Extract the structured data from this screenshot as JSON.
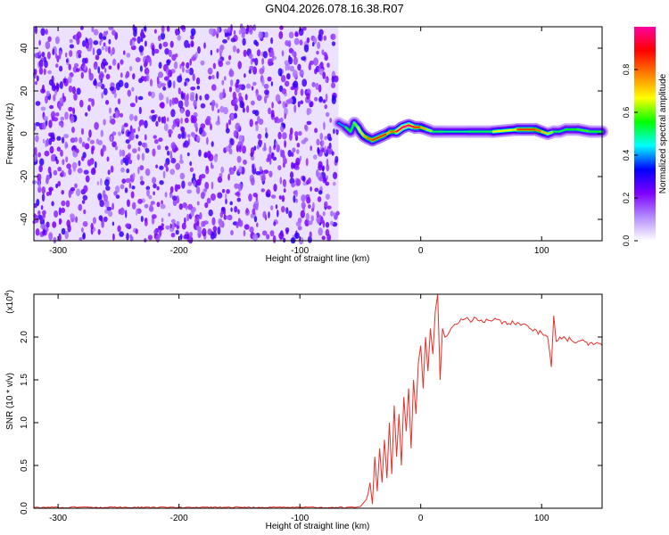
{
  "figure": {
    "title": "GN04.2026.078.16.38.R07"
  },
  "colorbar": {
    "label": "Normalized spectral amplitude",
    "ticks": [
      0.0,
      0.2,
      0.4,
      0.6,
      0.8
    ],
    "tick_labels": [
      "0.0",
      "0.2",
      "0.4",
      "0.6",
      "0.8"
    ],
    "range": [
      0,
      1
    ],
    "colors": [
      "#ffffff",
      "#b48cff",
      "#7f00ff",
      "#0000ff",
      "#00ffff",
      "#00ff00",
      "#ffff00",
      "#ff8000",
      "#ff0000",
      "#ff00a0"
    ]
  },
  "chart_data": [
    {
      "type": "heatmap",
      "title": "",
      "xlabel": "Height of straight line (km)",
      "ylabel": "Frequency (Hz)",
      "xlim": [
        -320,
        150
      ],
      "ylim": [
        -50,
        50
      ],
      "xticks": [
        -300,
        -200,
        -100,
        0,
        100
      ],
      "xtick_labels": [
        "-300",
        "-200",
        "-100",
        "0",
        "100"
      ],
      "yticks": [
        -40,
        -20,
        0,
        20,
        40
      ],
      "ytick_labels": [
        "-40",
        "-20",
        "0",
        "20",
        "40"
      ],
      "noise_region_x": [
        -320,
        -68
      ],
      "signal_ridge": {
        "x": [
          -68,
          -62,
          -58,
          -55,
          -52,
          -50,
          -47,
          -44,
          -40,
          -36,
          -32,
          -28,
          -25,
          -20,
          -15,
          -10,
          -5,
          0,
          5,
          10,
          20,
          40,
          60,
          80,
          95,
          100,
          105,
          110,
          115,
          120,
          130,
          140,
          150
        ],
        "y": [
          5,
          3,
          1,
          5,
          3,
          1,
          -1,
          -2,
          -3,
          -2,
          -1,
          0,
          1,
          1,
          3,
          4,
          3,
          3,
          2,
          1,
          1,
          1,
          1,
          2,
          2,
          1,
          0,
          1,
          1,
          2,
          2,
          1,
          1
        ],
        "peak_amplitude": [
          0.3,
          0.5,
          0.6,
          0.5,
          0.7,
          0.6,
          0.8,
          0.7,
          0.9,
          0.8,
          0.9,
          0.8,
          0.7,
          0.9,
          1.0,
          1.0,
          0.9,
          0.8,
          0.7,
          0.55,
          0.5,
          0.5,
          0.55,
          0.8,
          0.9,
          0.7,
          0.75,
          0.5,
          0.55,
          0.5,
          0.6,
          0.55,
          0.55
        ]
      }
    },
    {
      "type": "line",
      "title": "",
      "xlabel": "Height of straight line (km)",
      "ylabel": "SNR (10 * v/v)",
      "y_multiplier_label": "(x10",
      "y_multiplier_exp": "4",
      "y_multiplier_close": ")",
      "xlim": [
        -320,
        150
      ],
      "ylim": [
        0,
        2.5
      ],
      "xticks": [
        -300,
        -200,
        -100,
        0,
        100
      ],
      "xtick_labels": [
        "-300",
        "-200",
        "-100",
        "0",
        "100"
      ],
      "yticks": [
        0.0,
        0.5,
        1.0,
        1.5,
        2.0
      ],
      "ytick_labels": [
        "0.0",
        "0.5",
        "1.0",
        "1.5",
        "2.0"
      ],
      "grid": false,
      "series": [
        {
          "color": "#e8302a",
          "x": [
            -320,
            -250,
            -200,
            -150,
            -100,
            -70,
            -55,
            -50,
            -45,
            -42,
            -40,
            -38,
            -36,
            -34,
            -32,
            -30,
            -28,
            -26,
            -24,
            -22,
            -20,
            -18,
            -16,
            -14,
            -12,
            -10,
            -8,
            -6,
            -4,
            -2,
            0,
            2,
            4,
            6,
            8,
            10,
            12,
            14,
            16,
            18,
            20,
            25,
            30,
            35,
            40,
            50,
            60,
            70,
            80,
            90,
            100,
            105,
            108,
            110,
            112,
            115,
            120,
            130,
            140,
            150
          ],
          "y": [
            0.01,
            0.01,
            0.01,
            0.01,
            0.01,
            0.01,
            0.01,
            0.02,
            0.1,
            0.3,
            0.05,
            0.6,
            0.2,
            0.7,
            0.3,
            0.8,
            0.35,
            1.0,
            0.4,
            1.2,
            0.6,
            1.1,
            0.5,
            1.3,
            0.9,
            1.4,
            0.7,
            1.5,
            1.1,
            1.7,
            1.9,
            1.4,
            2.0,
            1.6,
            2.1,
            1.8,
            2.3,
            2.5,
            1.5,
            2.1,
            2.0,
            2.1,
            2.15,
            2.2,
            2.2,
            2.2,
            2.2,
            2.18,
            2.17,
            2.1,
            2.05,
            2.0,
            1.65,
            2.25,
            1.95,
            2.0,
            1.98,
            1.95,
            1.93,
            1.9
          ]
        }
      ]
    }
  ]
}
